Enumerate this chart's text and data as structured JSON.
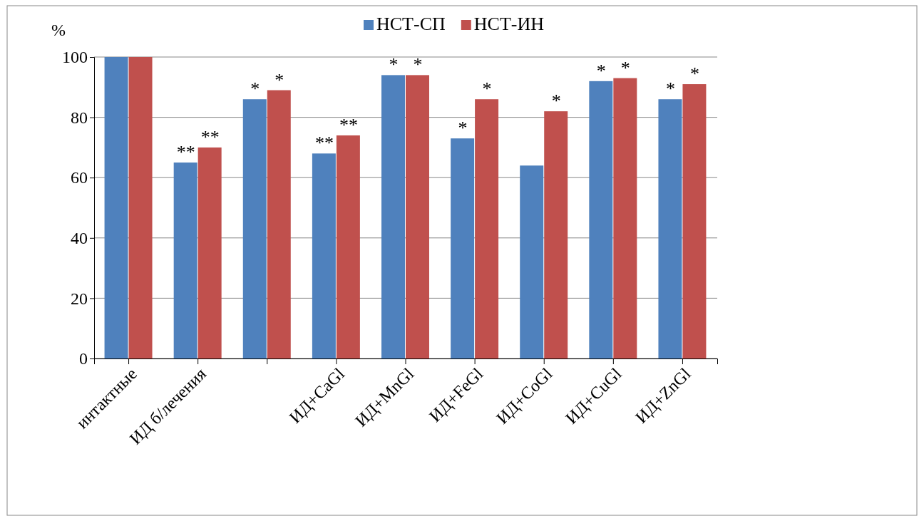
{
  "chart_data": {
    "type": "bar",
    "ylabel": "%",
    "categories": [
      "интактные",
      "ИД б/лечения",
      null,
      "ИД+CaGl",
      "ИД+MnGl",
      "ИД+FeGl",
      "ИД+CoGl",
      "ИД+CuGl",
      "ИД+ZnGl"
    ],
    "series": [
      {
        "name": "НСТ-СП",
        "color": "#4f81bd",
        "values": [
          100,
          65,
          86,
          68,
          94,
          73,
          64,
          92,
          86
        ],
        "value_labels": [
          null,
          "**",
          "*",
          "**",
          "*",
          "*",
          null,
          "*",
          "*"
        ]
      },
      {
        "name": "НСТ-ИН",
        "color": "#c0504d",
        "values": [
          100,
          70,
          89,
          74,
          94,
          86,
          82,
          93,
          91
        ],
        "value_labels": [
          null,
          "**",
          "*",
          "**",
          "*",
          "*",
          "*",
          "*",
          "*"
        ]
      }
    ],
    "ylim": [
      0,
      100
    ],
    "yticks": [
      0,
      20,
      40,
      60,
      80,
      100
    ],
    "grid": "y",
    "legend": "top"
  }
}
